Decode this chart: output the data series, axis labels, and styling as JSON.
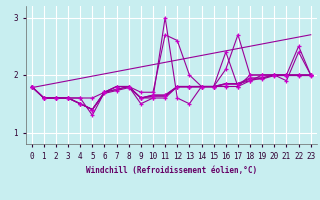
{
  "xlabel": "Windchill (Refroidissement éolien,°C)",
  "ylabel": "",
  "bg_color": "#c8eef0",
  "grid_color": "#b8dfe2",
  "line_color": "#990099",
  "marker_color": "#cc00cc",
  "x": [
    0,
    1,
    2,
    3,
    4,
    5,
    6,
    7,
    8,
    9,
    10,
    11,
    12,
    13,
    14,
    15,
    16,
    17,
    18,
    19,
    20,
    21,
    22,
    23
  ],
  "series": [
    [
      1.8,
      1.6,
      1.6,
      1.6,
      1.6,
      1.3,
      1.7,
      1.8,
      1.8,
      1.5,
      1.6,
      3.0,
      1.6,
      1.5,
      1.8,
      1.8,
      2.4,
      1.8,
      2.0,
      2.0,
      2.0,
      1.9,
      2.4,
      2.0
    ],
    [
      1.8,
      1.6,
      1.6,
      1.6,
      1.5,
      1.4,
      1.7,
      1.8,
      1.8,
      1.6,
      1.6,
      1.6,
      1.8,
      1.8,
      1.8,
      1.8,
      1.8,
      1.8,
      1.9,
      2.0,
      2.0,
      2.0,
      2.0,
      2.0
    ],
    [
      1.8,
      1.6,
      1.6,
      1.6,
      1.5,
      1.4,
      1.7,
      1.75,
      1.8,
      1.6,
      1.65,
      1.65,
      1.8,
      1.8,
      1.8,
      1.8,
      1.85,
      1.85,
      1.9,
      1.95,
      2.0,
      2.0,
      2.0,
      2.0
    ],
    [
      1.8,
      1.6,
      1.6,
      1.6,
      1.5,
      1.4,
      1.7,
      1.75,
      1.8,
      1.6,
      1.65,
      1.65,
      1.8,
      1.8,
      1.8,
      1.8,
      1.85,
      1.85,
      1.95,
      1.95,
      2.0,
      2.0,
      2.0,
      2.0
    ],
    [
      1.8,
      1.6,
      1.6,
      1.6,
      1.5,
      1.4,
      1.68,
      1.73,
      1.78,
      1.6,
      1.63,
      1.63,
      1.79,
      1.79,
      1.79,
      1.79,
      1.84,
      1.84,
      1.93,
      1.93,
      1.99,
      1.99,
      1.99,
      1.99
    ],
    [
      1.8,
      1.6,
      1.6,
      1.6,
      1.6,
      1.6,
      1.7,
      1.8,
      1.8,
      1.7,
      1.7,
      2.7,
      2.6,
      2.0,
      1.8,
      1.8,
      2.1,
      2.7,
      2.0,
      2.0,
      2.0,
      2.0,
      2.5,
      2.0
    ]
  ],
  "trend_line": [
    [
      0,
      1.78
    ],
    [
      23,
      2.7
    ]
  ],
  "ylim": [
    0.8,
    3.2
  ],
  "yticks": [
    1,
    2,
    3
  ],
  "xticks": [
    0,
    1,
    2,
    3,
    4,
    5,
    6,
    7,
    8,
    9,
    10,
    11,
    12,
    13,
    14,
    15,
    16,
    17,
    18,
    19,
    20,
    21,
    22,
    23
  ],
  "xlabel_fontsize": 5.5,
  "tick_fontsize": 5.5
}
